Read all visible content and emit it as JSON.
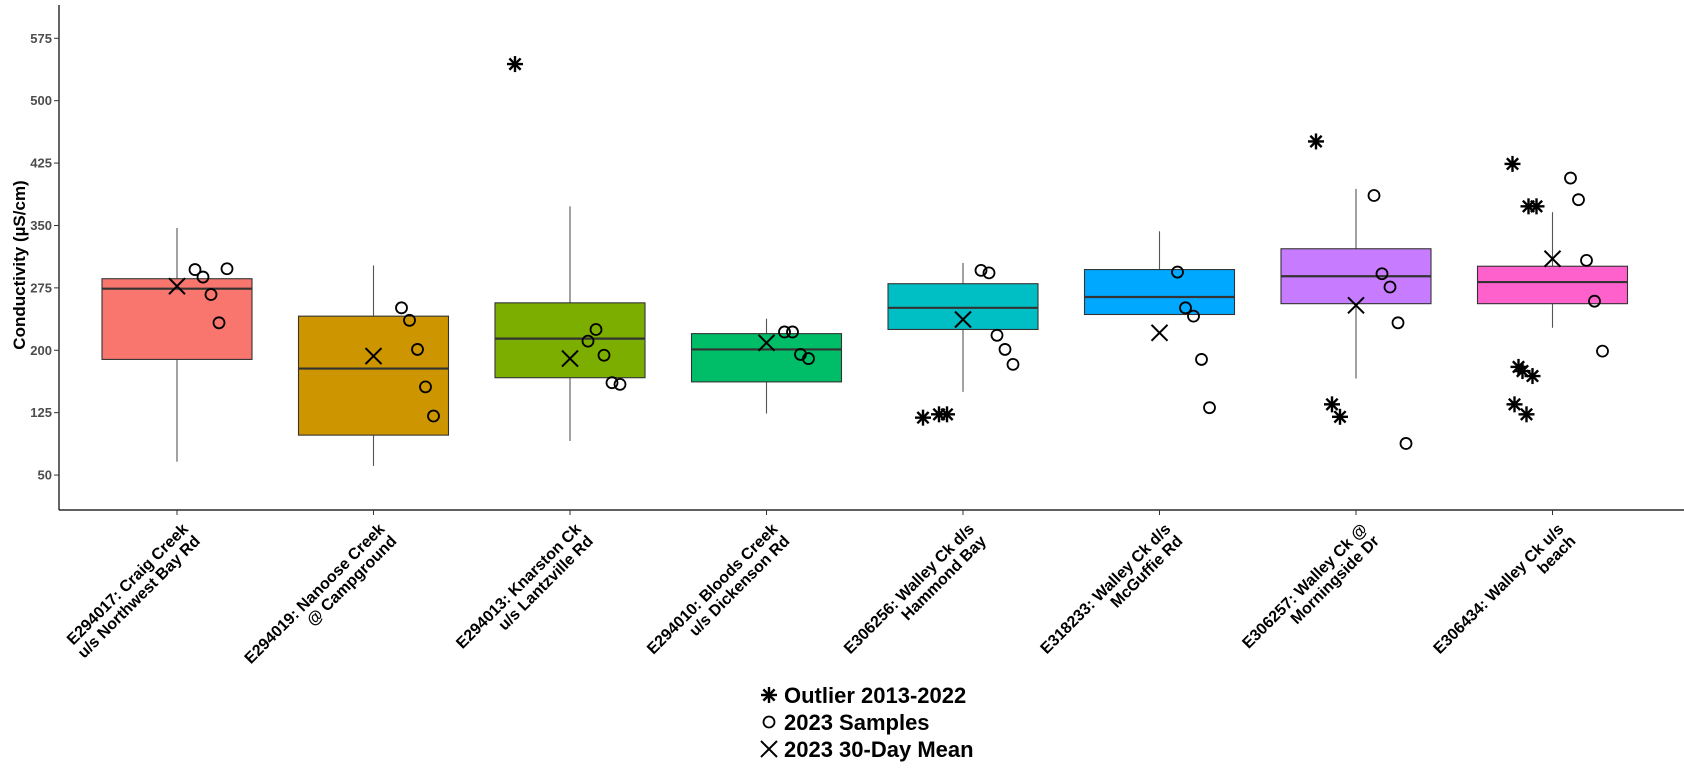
{
  "chart_data": {
    "type": "box",
    "ylabel": "Conductivity (µS/cm)",
    "xlabel": "",
    "ylim": [
      8,
      615
    ],
    "yticks": [
      50,
      125,
      200,
      275,
      350,
      425,
      500,
      575
    ],
    "legend": {
      "position": "bottom",
      "items": [
        {
          "symbol": "asterisk",
          "label": "Outlier 2013-2022"
        },
        {
          "symbol": "circle",
          "label": "2023 Samples"
        },
        {
          "symbol": "cross",
          "label": "2023 30-Day Mean"
        }
      ]
    },
    "categories": [
      {
        "label_lines": [
          "E294017: Craig Creek",
          "u/s Northwest Bay Rd"
        ],
        "color": "#F8766D",
        "box": {
          "whisker_low": 66,
          "q1": 189,
          "median": 274,
          "q3": 286,
          "whisker_high": 347
        },
        "outliers": [],
        "samples": [
          297,
          288,
          267,
          233,
          298
        ],
        "mean": 277
      },
      {
        "label_lines": [
          "E294019: Nanoose Creek",
          "@ Campground"
        ],
        "color": "#CD9600",
        "box": {
          "whisker_low": 61,
          "q1": 98,
          "median": 178,
          "q3": 241,
          "whisker_high": 302
        },
        "outliers": [],
        "samples": [
          251,
          236,
          201,
          156,
          121
        ],
        "mean": 193
      },
      {
        "label_lines": [
          "E294013: Knarston Ck",
          "u/s Lantzville Rd"
        ],
        "color": "#7CAE00",
        "box": {
          "whisker_low": 91,
          "q1": 167,
          "median": 214,
          "q3": 257,
          "whisker_high": 373
        },
        "outliers": [
          544
        ],
        "samples": [
          211,
          225,
          194,
          161,
          159
        ],
        "mean": 190
      },
      {
        "label_lines": [
          "E294010: Bloods Creek",
          "u/s Dickenson Rd"
        ],
        "color": "#00BE67",
        "box": {
          "whisker_low": 124,
          "q1": 162,
          "median": 201,
          "q3": 220,
          "whisker_high": 238
        },
        "outliers": [],
        "samples": [
          222,
          222,
          195,
          190
        ],
        "mean": 209
      },
      {
        "label_lines": [
          "E306256: Walley Ck d/s",
          "Hammond Bay"
        ],
        "color": "#00BFC4",
        "box": {
          "whisker_low": 150,
          "q1": 225,
          "median": 251,
          "q3": 280,
          "whisker_high": 305
        },
        "outliers": [
          119,
          123,
          123
        ],
        "samples": [
          296,
          293,
          218,
          201,
          183
        ],
        "mean": 237
      },
      {
        "label_lines": [
          "E318233: Walley Ck d/s",
          "McGuffie Rd"
        ],
        "color": "#00A9FF",
        "box": {
          "whisker_low": 243,
          "q1": 243,
          "median": 264,
          "q3": 297,
          "whisker_high": 343
        },
        "outliers": [],
        "samples": [
          294,
          251,
          241,
          189,
          131
        ],
        "mean": 221
      },
      {
        "label_lines": [
          "E306257: Walley Ck @",
          "Morningside Dr"
        ],
        "color": "#C77CFF",
        "box": {
          "whisker_low": 166,
          "q1": 256,
          "median": 289,
          "q3": 322,
          "whisker_high": 394
        },
        "outliers": [
          451,
          135,
          120
        ],
        "samples": [
          386,
          292,
          276,
          233,
          88
        ],
        "mean": 254
      },
      {
        "label_lines": [
          "E306434: Walley Ck u/s",
          "beach"
        ],
        "color": "#FF61CC",
        "box": {
          "whisker_low": 227,
          "q1": 256,
          "median": 282,
          "q3": 301,
          "whisker_high": 366
        },
        "outliers": [
          424,
          373,
          373,
          175,
          180,
          169,
          135,
          123
        ],
        "samples": [
          407,
          381,
          308,
          259,
          199
        ],
        "mean": 310
      }
    ]
  }
}
